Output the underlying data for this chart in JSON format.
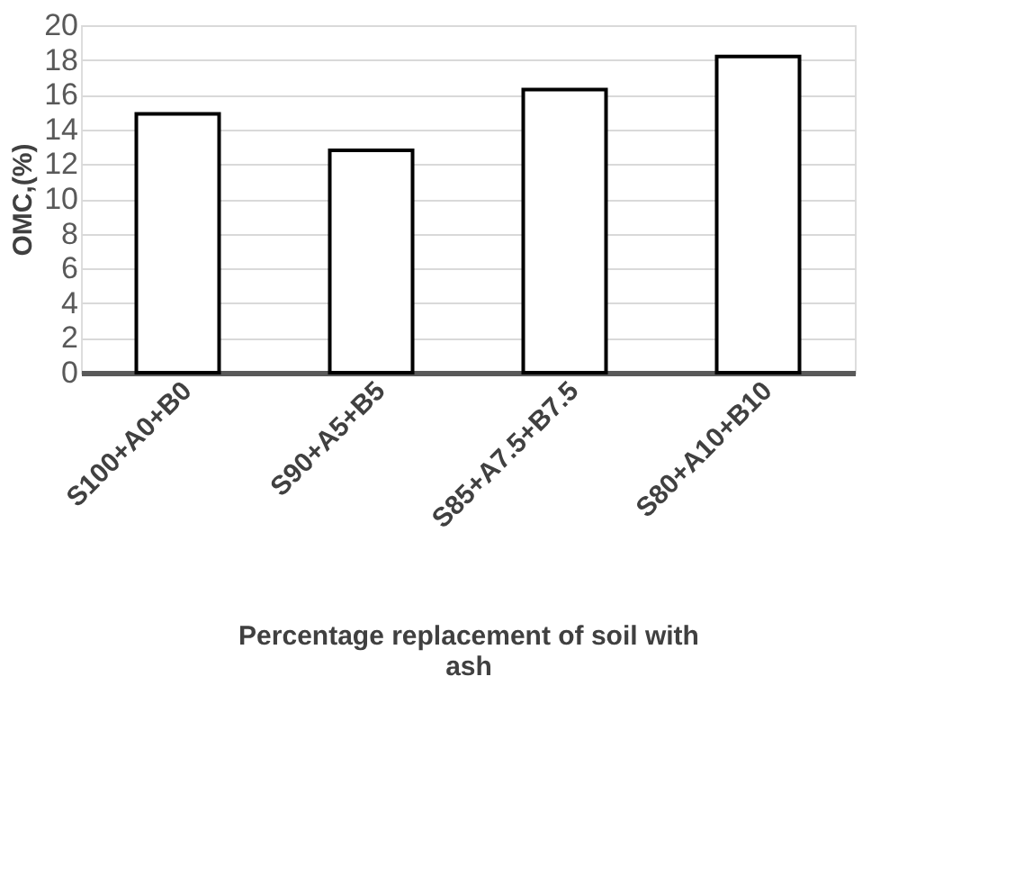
{
  "chart_data": {
    "type": "bar",
    "xlabel": "Percentage replacement of soil with ash",
    "ylabel": "OMC,(%)",
    "categories": [
      "S100+A0+B0",
      "S90+A5+B5",
      "S85+A7.5+B7.5",
      "S80+A10+B10"
    ],
    "values": [
      14.9,
      12.8,
      16.3,
      18.2
    ],
    "colors": [
      "#ffffff",
      "#ffffff",
      "#ffffff",
      "#ffffff"
    ],
    "ylim": [
      0,
      20
    ],
    "yticks": [
      0,
      2,
      4,
      6,
      8,
      10,
      12,
      14,
      16,
      18,
      20
    ],
    "grid": "y"
  }
}
